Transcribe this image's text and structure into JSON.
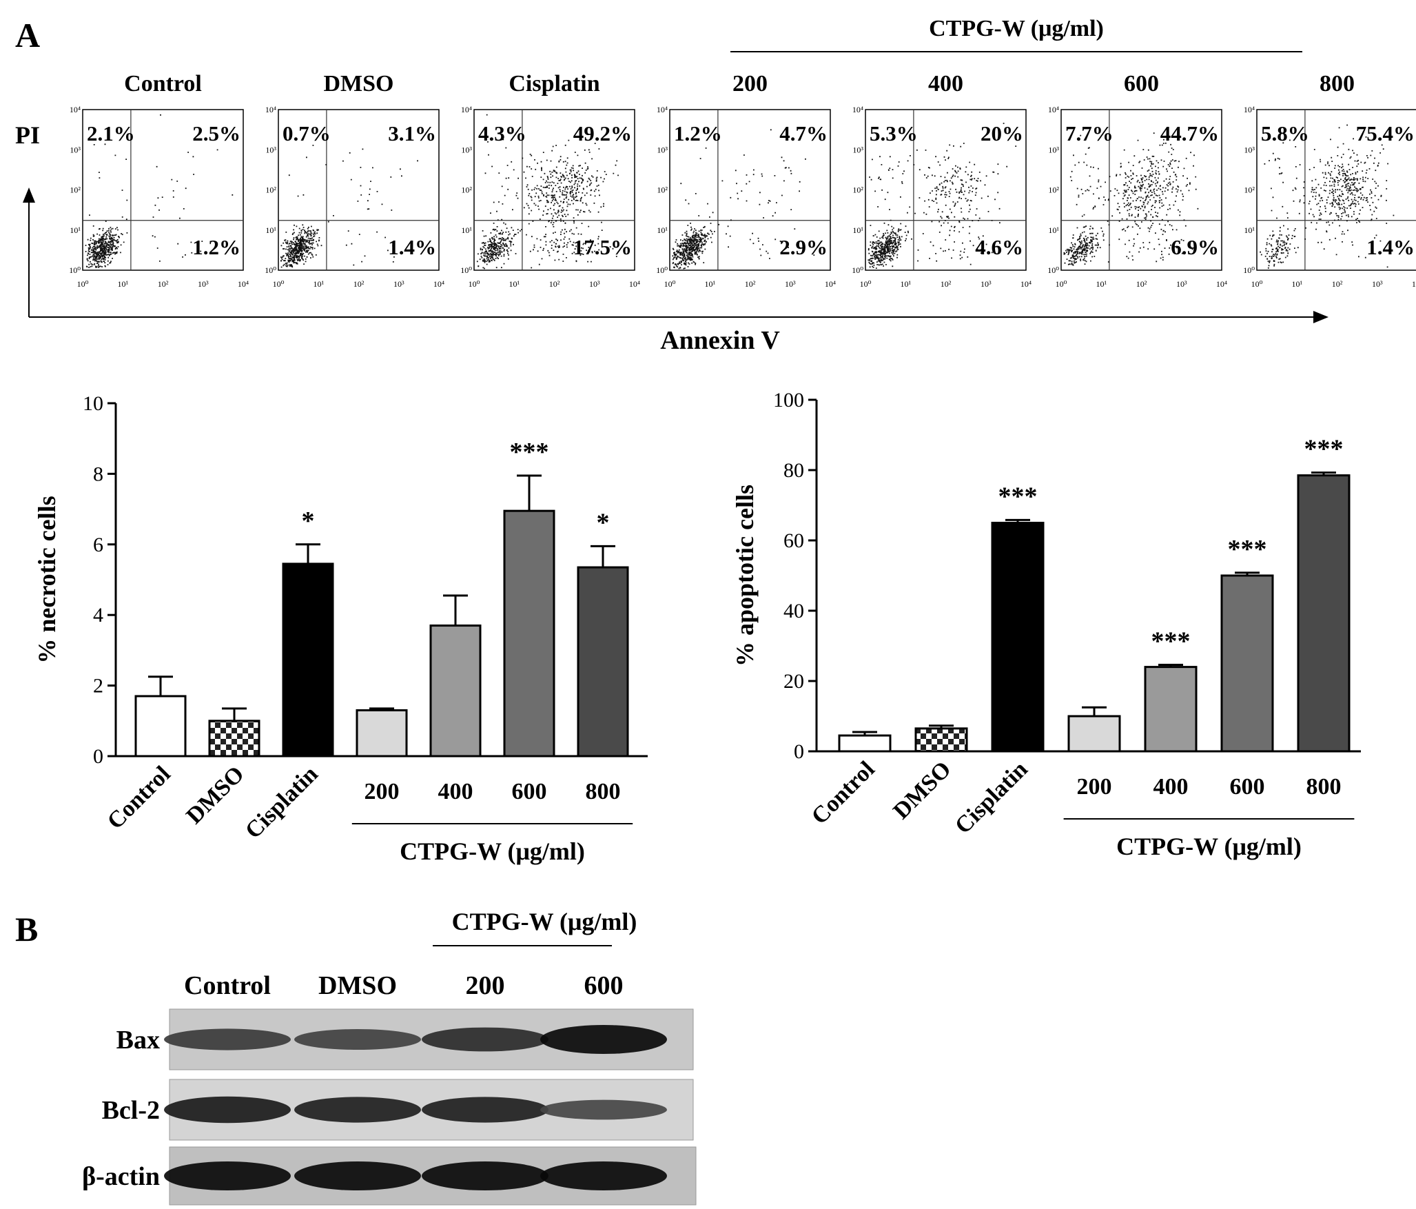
{
  "panel_a_label": "A",
  "panel_b_label": "B",
  "flow": {
    "group_label": "CTPG-W (μg/ml)",
    "y_axis_label": "PI",
    "x_axis_label": "Annexin V",
    "axis_ticks": [
      "10⁰",
      "10¹",
      "10²",
      "10³",
      "10⁴"
    ],
    "plots": [
      {
        "title": "Control",
        "ul": "2.1%",
        "ur": "2.5%",
        "lr": "1.2%",
        "density": {
          "bl": 1,
          "ur": 0.05,
          "lr": 0.04,
          "ul": 0.04
        }
      },
      {
        "title": "DMSO",
        "ul": "0.7%",
        "ur": "3.1%",
        "lr": "1.4%",
        "density": {
          "bl": 1,
          "ur": 0.06,
          "lr": 0.05,
          "ul": 0.02
        }
      },
      {
        "title": "Cisplatin",
        "ul": "4.3%",
        "ur": "49.2%",
        "lr": "17.5%",
        "density": {
          "bl": 0.6,
          "ur": 1,
          "lr": 0.45,
          "ul": 0.12
        }
      },
      {
        "title": "200",
        "ul": "1.2%",
        "ur": "4.7%",
        "lr": "2.9%",
        "density": {
          "bl": 1,
          "ur": 0.1,
          "lr": 0.08,
          "ul": 0.04
        }
      },
      {
        "title": "400",
        "ul": "5.3%",
        "ur": "20%",
        "lr": "4.6%",
        "density": {
          "bl": 0.85,
          "ur": 0.5,
          "lr": 0.15,
          "ul": 0.15
        }
      },
      {
        "title": "600",
        "ul": "7.7%",
        "ur": "44.7%",
        "lr": "6.9%",
        "density": {
          "bl": 0.5,
          "ur": 0.9,
          "lr": 0.2,
          "ul": 0.2
        }
      },
      {
        "title": "800",
        "ul": "5.8%",
        "ur": "75.4%",
        "lr": "1.4%",
        "density": {
          "bl": 0.25,
          "ur": 1,
          "lr": 0.05,
          "ul": 0.12
        }
      }
    ]
  },
  "chart_data": [
    {
      "type": "bar",
      "ylabel": "% necrotic cells",
      "ylim": [
        0,
        10
      ],
      "yticks": [
        0,
        2,
        4,
        6,
        8,
        10
      ],
      "categories": [
        "Control",
        "DMSO",
        "Cisplatin",
        "200",
        "400",
        "600",
        "800"
      ],
      "values": [
        1.7,
        1.0,
        5.45,
        1.3,
        3.7,
        6.95,
        5.35
      ],
      "errors": [
        0.55,
        0.35,
        0.55,
        0.05,
        0.85,
        1.0,
        0.6
      ],
      "significance": [
        "",
        "",
        "*",
        "",
        "",
        "***",
        "*"
      ],
      "group_label": "CTPG-W (μg/ml)",
      "fills": [
        "#ffffff",
        "checker",
        "#000000",
        "#d9d9d9",
        "#9a9a9a",
        "#6e6e6e",
        "#4a4a4a"
      ]
    },
    {
      "type": "bar",
      "ylabel": "% apoptotic cells",
      "ylim": [
        0,
        100
      ],
      "yticks": [
        0,
        20,
        40,
        60,
        80,
        100
      ],
      "categories": [
        "Control",
        "DMSO",
        "Cisplatin",
        "200",
        "400",
        "600",
        "800"
      ],
      "values": [
        4.5,
        6.5,
        65,
        10,
        24,
        50,
        78.5
      ],
      "errors": [
        1.0,
        0.8,
        0.8,
        2.5,
        0.6,
        0.8,
        0.8
      ],
      "significance": [
        "",
        "",
        "***",
        "",
        "***",
        "***",
        "***"
      ],
      "group_label": "CTPG-W (μg/ml)",
      "fills": [
        "#ffffff",
        "checker",
        "#000000",
        "#d9d9d9",
        "#9a9a9a",
        "#6e6e6e",
        "#4a4a4a"
      ]
    }
  ],
  "blot": {
    "group_label": "CTPG-W (μg/ml)",
    "lanes": [
      "Control",
      "DMSO",
      "200",
      "600"
    ],
    "rows": [
      {
        "label": "Bax",
        "intensity": [
          0.55,
          0.5,
          0.7,
          1.0
        ]
      },
      {
        "label": "Bcl-2",
        "intensity": [
          0.85,
          0.8,
          0.8,
          0.45
        ]
      },
      {
        "label": "β-actin",
        "intensity": [
          1.0,
          1.0,
          1.0,
          1.0
        ]
      }
    ]
  }
}
